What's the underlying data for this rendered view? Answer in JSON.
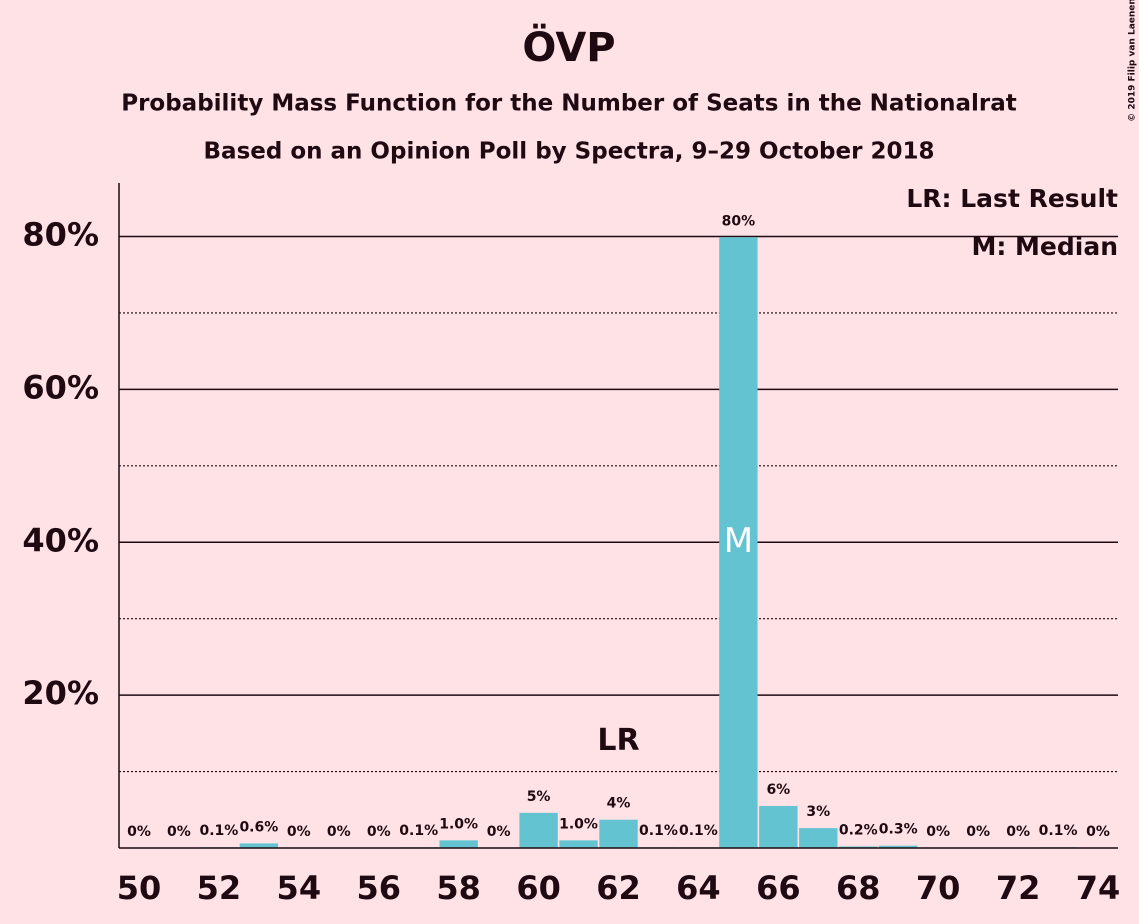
{
  "chart_data": {
    "type": "bar",
    "title": "ÖVP",
    "subtitle": "Probability Mass Function for the Number of Seats in the Nationalrat",
    "subtitle2": "Based on an Opinion Poll by Spectra, 9–29 October 2018",
    "copyright": "© 2019 Filip van Laenen",
    "legend_entries": [
      "LR: Last Result",
      "M: Median"
    ],
    "x": [
      50,
      51,
      52,
      53,
      54,
      55,
      56,
      57,
      58,
      59,
      60,
      61,
      62,
      63,
      64,
      65,
      66,
      67,
      68,
      69,
      70,
      71,
      72,
      73,
      74
    ],
    "values": [
      0,
      0,
      0.1,
      0.6,
      0,
      0,
      0,
      0.1,
      1.0,
      0,
      4.6,
      1.0,
      3.7,
      0.1,
      0.1,
      79.9,
      5.5,
      2.6,
      0.2,
      0.3,
      0,
      0,
      0,
      0.1,
      0
    ],
    "value_labels": [
      "0%",
      "0%",
      "0.1%",
      "0.6%",
      "0%",
      "0%",
      "0%",
      "0.1%",
      "1.0%",
      "0%",
      "5%",
      "1.0%",
      "4%",
      "0.1%",
      "0.1%",
      "80%",
      "6%",
      "3%",
      "0.2%",
      "0.3%",
      "0%",
      "0%",
      "0%",
      "0.1%",
      "0%"
    ],
    "color": "#63c3d1",
    "last_result": {
      "x": 62,
      "label": "LR"
    },
    "median": {
      "x": 65,
      "label": "M"
    },
    "xlim": [
      49.5,
      74.5
    ],
    "xticks": [
      50,
      52,
      54,
      56,
      58,
      60,
      62,
      64,
      66,
      68,
      70,
      72,
      74
    ],
    "ylim": [
      0,
      87
    ],
    "yticks": [
      {
        "value": 20,
        "label": "20%"
      },
      {
        "value": 40,
        "label": "40%"
      },
      {
        "value": 60,
        "label": "60%"
      },
      {
        "value": 80,
        "label": "80%"
      }
    ],
    "minor_yticks": [
      10,
      30,
      50,
      70
    ],
    "grid": true
  }
}
